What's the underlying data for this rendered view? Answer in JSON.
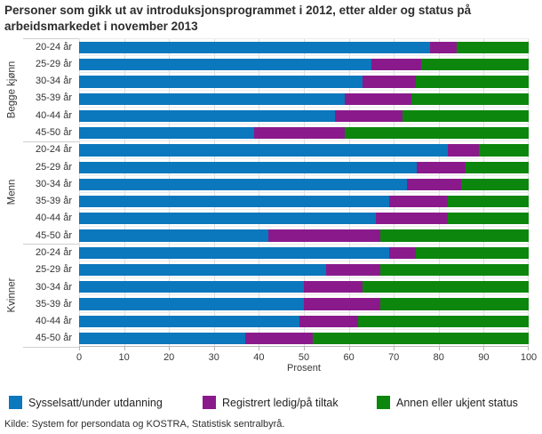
{
  "title": "Personer som gikk ut av introduksjonsprogrammet i 2012, etter alder og status på arbeidsmarkedet i november 2013",
  "source": "Kilde: System for persondata og KOSTRA, Statistisk sentralbyrå.",
  "colors": {
    "employed_blue": "#0b77bd",
    "registered_purple": "#8a1a8c",
    "other_green": "#0c860c",
    "gridline": "#dcdcdc",
    "axis_line": "#b5b5b5"
  },
  "chart_data": {
    "type": "bar",
    "stacked": true,
    "orientation": "horizontal",
    "title": "Personer som gikk ut av introduksjonsprogrammet i 2012, etter alder og status på arbeidsmarkedet i november 2013",
    "xlabel": "Prosent",
    "ylabel": "",
    "xlim": [
      0,
      100
    ],
    "x_ticks": [
      0,
      10,
      20,
      30,
      40,
      50,
      60,
      70,
      80,
      90,
      100
    ],
    "grid": true,
    "legend_position": "bottom",
    "series_names": [
      "Sysselsatt/under utdanning",
      "Registrert ledig/på tiltak",
      "Annen eller ukjent status"
    ],
    "series_colors": [
      "#0b77bd",
      "#8a1a8c",
      "#0c860c"
    ],
    "groups": [
      {
        "label": "Begge kjønn",
        "categories": [
          "20-24 år",
          "25-29 år",
          "30-34 år",
          "35-39 år",
          "40-44 år",
          "45-50 år"
        ],
        "values": [
          [
            78,
            6,
            16
          ],
          [
            65,
            11,
            24
          ],
          [
            63,
            12,
            25
          ],
          [
            59,
            15,
            26
          ],
          [
            57,
            15,
            28
          ],
          [
            39,
            20,
            41
          ]
        ]
      },
      {
        "label": "Menn",
        "categories": [
          "20-24 år",
          "25-29 år",
          "30-34 år",
          "35-39 år",
          "40-44 år",
          "45-50 år"
        ],
        "values": [
          [
            82,
            7,
            11
          ],
          [
            75,
            11,
            14
          ],
          [
            73,
            12,
            15
          ],
          [
            69,
            13,
            18
          ],
          [
            66,
            16,
            18
          ],
          [
            42,
            25,
            33
          ]
        ]
      },
      {
        "label": "Kvinner",
        "categories": [
          "20-24 år",
          "25-29 år",
          "30-34 år",
          "35-39 år",
          "40-44 år",
          "45-50 år"
        ],
        "values": [
          [
            69,
            6,
            25
          ],
          [
            55,
            12,
            33
          ],
          [
            50,
            13,
            37
          ],
          [
            50,
            17,
            33
          ],
          [
            49,
            13,
            38
          ],
          [
            37,
            15,
            48
          ]
        ]
      }
    ]
  }
}
